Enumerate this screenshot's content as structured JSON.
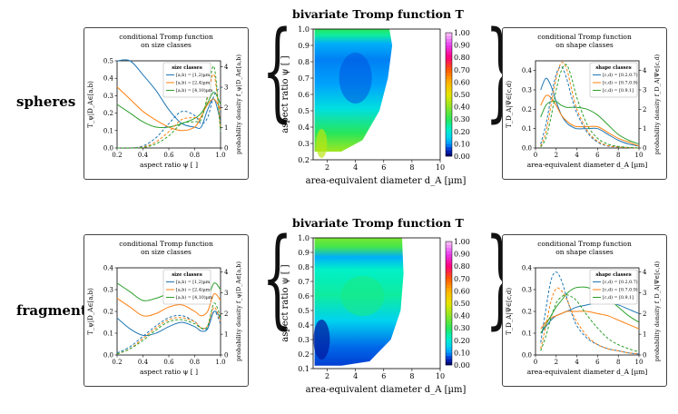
{
  "rows": [
    {
      "label": "spheres",
      "main": {
        "title": "bivariate Tromp function T",
        "xlabel": "area-equivalent diameter d_A [µm]",
        "ylabel": "aspect ratio ψ [ ]",
        "x_ticks": [
          "2",
          "4",
          "6",
          "8",
          "10"
        ],
        "y_ticks": [
          "0.2",
          "0.3",
          "0.4",
          "0.5",
          "0.6",
          "0.7",
          "0.8",
          "0.9",
          "1.0"
        ],
        "colorbar_ticks": [
          "0.00",
          "0.10",
          "0.20",
          "0.30",
          "0.40",
          "0.50",
          "0.60",
          "0.70",
          "0.80",
          "0.90",
          "1.00"
        ]
      },
      "left": {
        "title_line1": "conditional Tromp function",
        "title_line2": "on size classes",
        "xlabel": "aspect ratio ψ [ ]",
        "ylabel": "T_ψ|D_A∈[a,b)",
        "y2label": "probability density f_ψ|D_A∈[a,b)",
        "legend_title": "size classes",
        "x_ticks": [
          "0.2",
          "0.4",
          "0.6",
          "0.8",
          "1.0"
        ],
        "y_ticks": [
          "0.0",
          "0.1",
          "0.2",
          "0.3",
          "0.4",
          "0.5"
        ],
        "y2_ticks": [
          "0",
          "1",
          "2",
          "3",
          "4"
        ]
      },
      "right": {
        "title_line1": "conditional Tromp function",
        "title_line2": "on shape classes",
        "xlabel": "area-equivalent diameter d_A [µm]",
        "ylabel": "T_D_A|Ψ∈[c,d)",
        "y2label": "probability density f_D_A|Ψ∈[c,d)",
        "legend_title": "shape classes",
        "x_ticks": [
          "0",
          "2",
          "4",
          "6",
          "8",
          "10"
        ],
        "y_ticks": [
          "0.0",
          "0.1",
          "0.2",
          "0.3",
          "0.4"
        ],
        "y2_ticks": [
          "0",
          "1",
          "2",
          "3",
          "4"
        ]
      }
    },
    {
      "label": "fragments",
      "main": {
        "title": "bivariate Tromp function T",
        "xlabel": "area-equivalent diameter d_A [µm]",
        "ylabel": "aspect ratio ψ [ ]",
        "x_ticks": [
          "2",
          "4",
          "6",
          "8",
          "10"
        ],
        "y_ticks": [
          "0.1",
          "0.2",
          "0.3",
          "0.4",
          "0.5",
          "0.6",
          "0.7",
          "0.8",
          "0.9",
          "1.0"
        ],
        "colorbar_ticks": [
          "0.00",
          "0.10",
          "0.20",
          "0.30",
          "0.40",
          "0.50",
          "0.60",
          "0.70",
          "0.80",
          "0.90",
          "1.00"
        ]
      },
      "left": {
        "title_line1": "conditional Tromp function",
        "title_line2": "on size classes",
        "xlabel": "aspect ratio ψ [ ]",
        "ylabel": "T_ψ|D_A∈[a,b)",
        "y2label": "probability density f_ψ|D_A∈[a,b)",
        "legend_title": "size classes",
        "x_ticks": [
          "0.2",
          "0.4",
          "0.6",
          "0.8",
          "1.0"
        ],
        "y_ticks": [
          "0.0",
          "0.1",
          "0.2",
          "0.3",
          "0.4"
        ],
        "y2_ticks": [
          "0",
          "1",
          "2",
          "3",
          "4"
        ]
      },
      "right": {
        "title_line1": "conditional Tromp function",
        "title_line2": "on shape classes",
        "xlabel": "area-equivalent diameter d_A [µm]",
        "ylabel": "T_D_A|Ψ∈[c,d)",
        "y2label": "probability density f_D_A|Ψ∈[c,d)",
        "legend_title": "shape classes",
        "x_ticks": [
          "0",
          "2",
          "4",
          "6",
          "8",
          "10"
        ],
        "y_ticks": [
          "0.0",
          "0.1",
          "0.2",
          "0.3",
          "0.4"
        ],
        "y2_ticks": [
          "0",
          "1",
          "2",
          "3",
          "4"
        ]
      }
    }
  ],
  "chart_data": [
    {
      "type": "heatmap",
      "id": "spheres-main",
      "title": "bivariate Tromp function T",
      "xlabel": "area-equivalent diameter d_A [µm]",
      "ylabel": "aspect ratio ψ [ ]",
      "xlim": [
        1,
        10
      ],
      "ylim": [
        0.2,
        1.0
      ],
      "clim": [
        0,
        1
      ],
      "boundary_right": [
        [
          1.8,
          0.25
        ],
        [
          3.0,
          0.25
        ],
        [
          4.5,
          0.32
        ],
        [
          5.7,
          0.5
        ],
        [
          6.3,
          0.7
        ],
        [
          6.6,
          0.9
        ],
        [
          6.4,
          1.0
        ]
      ],
      "value_notes": {
        "low_psi_small_d": 0.45,
        "mid": 0.12,
        "core_min": 0.05,
        "top_band": 0.2
      }
    },
    {
      "type": "line",
      "id": "spheres-left",
      "xlim": [
        0.2,
        1.0
      ],
      "ylim": [
        0,
        0.5
      ],
      "y2lim": [
        0,
        4.3
      ],
      "x": [
        0.2,
        0.3,
        0.4,
        0.5,
        0.6,
        0.7,
        0.8,
        0.85,
        0.9,
        0.95,
        1.0
      ],
      "series": [
        {
          "name": "[a,b) = [1,2)µm",
          "color": "#1f77b4",
          "values": [
            0.5,
            0.5,
            0.42,
            0.33,
            0.22,
            0.14,
            0.12,
            0.12,
            0.22,
            0.28,
            0.15
          ]
        },
        {
          "name": "[a,b) = [2,4)µm",
          "color": "#ff7f0e",
          "values": [
            0.35,
            0.28,
            0.21,
            0.16,
            0.12,
            0.1,
            0.12,
            0.18,
            0.25,
            0.28,
            0.22
          ]
        },
        {
          "name": "[a,b) = [4,10)µm",
          "color": "#2ca02c",
          "values": [
            0.25,
            0.2,
            0.15,
            0.12,
            0.12,
            0.14,
            0.17,
            0.2,
            0.26,
            0.32,
            0.25
          ]
        }
      ],
      "density_series": [
        {
          "name": "[a,b) = [1,2)µm",
          "color": "#1f77b4",
          "values": [
            0,
            0,
            0.1,
            0.5,
            1.2,
            1.8,
            1.6,
            1.2,
            1.5,
            2.6,
            3.0
          ]
        },
        {
          "name": "[a,b) = [2,4)µm",
          "color": "#ff7f0e",
          "values": [
            0,
            0,
            0.05,
            0.3,
            0.8,
            1.4,
            1.5,
            1.5,
            2.5,
            3.6,
            1.0
          ]
        },
        {
          "name": "[a,b) = [4,10)µm",
          "color": "#2ca02c",
          "values": [
            0,
            0,
            0.02,
            0.2,
            0.6,
            1.2,
            1.3,
            1.4,
            2.6,
            4.0,
            0.8
          ]
        }
      ]
    },
    {
      "type": "line",
      "id": "spheres-right",
      "xlim": [
        0,
        10
      ],
      "ylim": [
        0,
        0.45
      ],
      "y2lim": [
        0,
        4.5
      ],
      "x": [
        0.5,
        1,
        1.5,
        2,
        2.5,
        3,
        3.5,
        4,
        5,
        6,
        7,
        8,
        9,
        10
      ],
      "series": [
        {
          "name": "[c,d) = [0.2,0.7)",
          "color": "#1f77b4",
          "values": [
            0.3,
            0.36,
            0.32,
            0.24,
            0.17,
            0.13,
            0.11,
            0.1,
            0.1,
            0.1,
            0.07,
            0.04,
            0.02,
            0.01
          ]
        },
        {
          "name": "[c,d) = [0.7,0.9)",
          "color": "#ff7f0e",
          "values": [
            0.22,
            0.27,
            0.26,
            0.22,
            0.17,
            0.14,
            0.12,
            0.11,
            0.11,
            0.11,
            0.08,
            0.05,
            0.03,
            0.01
          ]
        },
        {
          "name": "[c,d) = [0.9,1]",
          "color": "#2ca02c",
          "values": [
            0.16,
            0.22,
            0.24,
            0.24,
            0.22,
            0.21,
            0.21,
            0.21,
            0.2,
            0.17,
            0.12,
            0.07,
            0.04,
            0.02
          ]
        }
      ],
      "density_series": [
        {
          "name": "[c,d) = [0.2,0.7)",
          "color": "#1f77b4",
          "values": [
            0.2,
            1.2,
            2.6,
            3.8,
            4.2,
            3.6,
            2.6,
            1.8,
            0.8,
            0.3,
            0.1,
            0.05,
            0.02,
            0
          ]
        },
        {
          "name": "[c,d) = [0.7,0.9)",
          "color": "#ff7f0e",
          "values": [
            0.1,
            0.8,
            2.2,
            3.6,
            4.4,
            4.1,
            3.0,
            2.0,
            0.9,
            0.35,
            0.12,
            0.05,
            0.02,
            0
          ]
        },
        {
          "name": "[c,d) = [0.9,1]",
          "color": "#2ca02c",
          "values": [
            0.05,
            0.5,
            1.6,
            3.0,
            4.0,
            4.3,
            3.6,
            2.6,
            1.2,
            0.5,
            0.2,
            0.08,
            0.03,
            0
          ]
        }
      ]
    },
    {
      "type": "heatmap",
      "id": "fragments-main",
      "title": "bivariate Tromp function T",
      "xlabel": "area-equivalent diameter d_A [µm]",
      "ylabel": "aspect ratio ψ [ ]",
      "xlim": [
        1,
        10
      ],
      "ylim": [
        0.1,
        1.0
      ],
      "clim": [
        0,
        1
      ],
      "boundary_right": [
        [
          3.0,
          0.12
        ],
        [
          5.0,
          0.15
        ],
        [
          6.5,
          0.3
        ],
        [
          7.2,
          0.5
        ],
        [
          7.4,
          0.75
        ],
        [
          7.3,
          1.0
        ]
      ],
      "value_notes": {
        "low_small_d": 0.05,
        "mid": 0.25,
        "top_band": 0.35
      }
    },
    {
      "type": "line",
      "id": "fragments-left",
      "xlim": [
        0.2,
        1.0
      ],
      "ylim": [
        0,
        0.4
      ],
      "y2lim": [
        0,
        4.2
      ],
      "x": [
        0.2,
        0.3,
        0.4,
        0.5,
        0.6,
        0.7,
        0.8,
        0.85,
        0.9,
        0.95,
        1.0
      ],
      "series": [
        {
          "name": "[a,b) = [1,2)µm",
          "color": "#1f77b4",
          "values": [
            0.17,
            0.12,
            0.09,
            0.1,
            0.13,
            0.15,
            0.13,
            0.11,
            0.12,
            0.2,
            0.17
          ]
        },
        {
          "name": "[a,b) = [2,4)µm",
          "color": "#ff7f0e",
          "values": [
            0.26,
            0.22,
            0.18,
            0.19,
            0.22,
            0.23,
            0.2,
            0.18,
            0.2,
            0.28,
            0.25
          ]
        },
        {
          "name": "[a,b) = [4,10)µm",
          "color": "#2ca02c",
          "values": [
            0.33,
            0.29,
            0.25,
            0.26,
            0.28,
            0.28,
            0.26,
            0.24,
            0.26,
            0.33,
            0.3
          ]
        }
      ],
      "density_series": [
        {
          "name": "[a,b) = [1,2)µm",
          "color": "#1f77b4",
          "values": [
            0.1,
            0.4,
            0.9,
            1.4,
            1.8,
            1.9,
            1.6,
            1.3,
            1.3,
            2.1,
            1.5
          ]
        },
        {
          "name": "[a,b) = [2,4)µm",
          "color": "#ff7f0e",
          "values": [
            0.05,
            0.3,
            0.8,
            1.3,
            1.7,
            1.8,
            1.6,
            1.3,
            1.4,
            2.3,
            1.6
          ]
        },
        {
          "name": "[a,b) = [4,10)µm",
          "color": "#2ca02c",
          "values": [
            0.05,
            0.3,
            0.7,
            1.2,
            1.6,
            1.7,
            1.5,
            1.3,
            1.4,
            2.5,
            1.8
          ]
        }
      ]
    },
    {
      "type": "line",
      "id": "fragments-right",
      "xlim": [
        0,
        10
      ],
      "ylim": [
        0,
        0.4
      ],
      "y2lim": [
        0,
        4.2
      ],
      "x": [
        0.5,
        1,
        1.5,
        2,
        2.5,
        3,
        3.5,
        4,
        5,
        6,
        7,
        8,
        9,
        10
      ],
      "series": [
        {
          "name": "[c,d) = [0.2,0.7)",
          "color": "#1f77b4",
          "values": [
            0.1,
            0.13,
            0.16,
            0.18,
            0.19,
            0.2,
            0.21,
            0.22,
            0.23,
            0.24,
            0.24,
            0.23,
            0.21,
            0.19
          ]
        },
        {
          "name": "[c,d) = [0.7,0.9)",
          "color": "#ff7f0e",
          "values": [
            0.12,
            0.15,
            0.17,
            0.18,
            0.19,
            0.2,
            0.2,
            0.2,
            0.2,
            0.19,
            0.18,
            0.16,
            0.14,
            0.12
          ]
        },
        {
          "name": "[c,d) = [0.9,1]",
          "color": "#2ca02c",
          "values": [
            0.1,
            0.14,
            0.18,
            0.22,
            0.25,
            0.28,
            0.3,
            0.31,
            0.31,
            0.29,
            0.26,
            0.22,
            0.18,
            0.15
          ]
        }
      ],
      "density_series": [
        {
          "name": "[c,d) = [0.2,0.7)",
          "color": "#1f77b4",
          "values": [
            0.6,
            2.2,
            3.6,
            4.0,
            3.6,
            2.8,
            2.0,
            1.4,
            0.8,
            0.5,
            0.3,
            0.2,
            0.1,
            0.05
          ]
        },
        {
          "name": "[c,d) = [0.7,0.9)",
          "color": "#ff7f0e",
          "values": [
            0.3,
            1.4,
            2.6,
            3.2,
            3.1,
            2.7,
            2.1,
            1.6,
            0.9,
            0.5,
            0.3,
            0.2,
            0.1,
            0.05
          ]
        },
        {
          "name": "[c,d) = [0.9,1]",
          "color": "#2ca02c",
          "values": [
            0.2,
            0.9,
            1.8,
            2.5,
            2.8,
            2.9,
            2.8,
            2.6,
            1.9,
            1.3,
            0.8,
            0.5,
            0.3,
            0.15
          ]
        }
      ]
    }
  ]
}
